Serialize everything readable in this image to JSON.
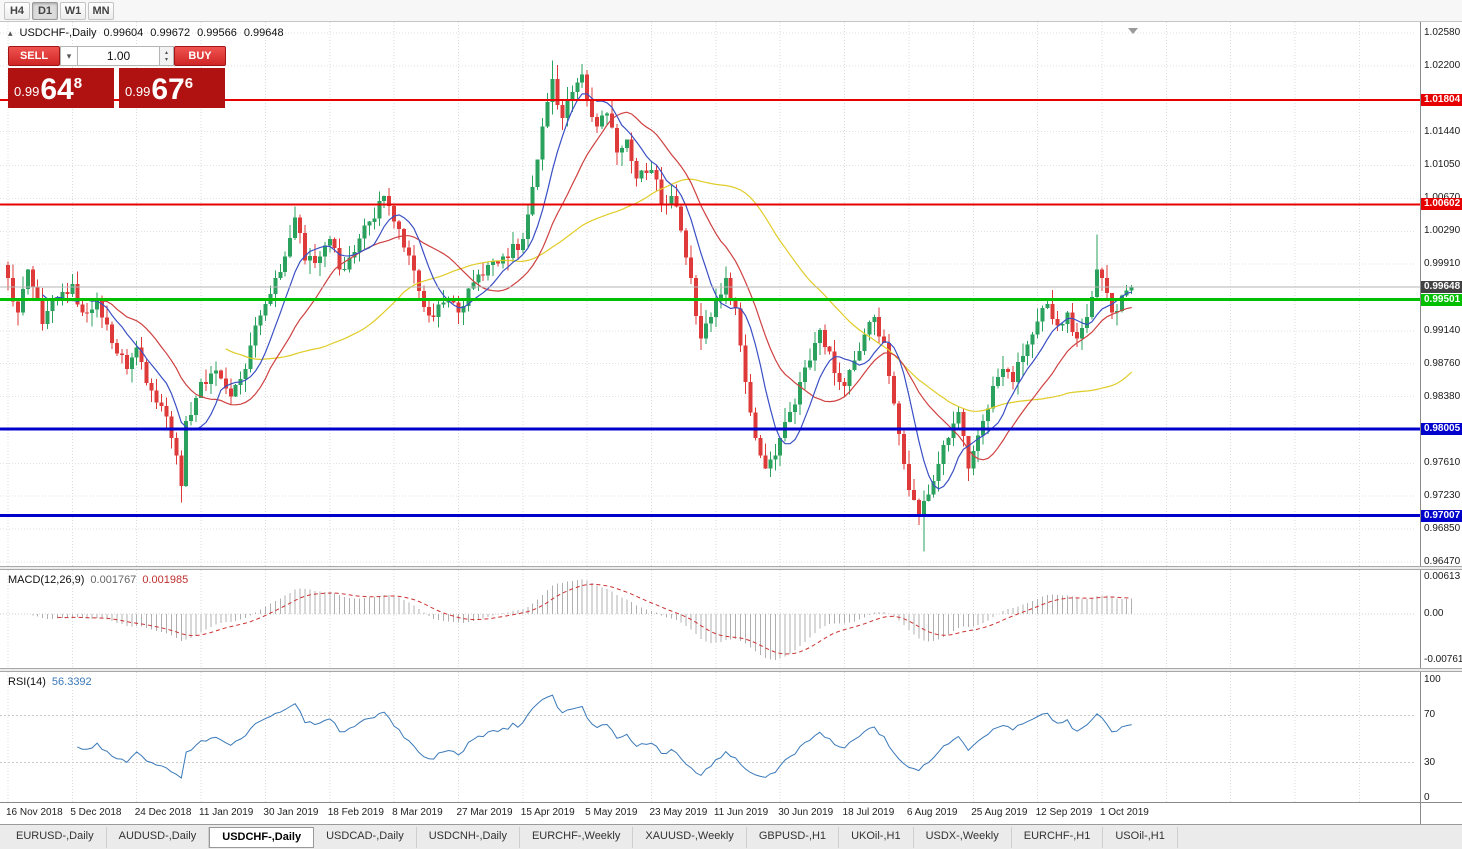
{
  "toolbar": {
    "timeframes": [
      "H4",
      "D1",
      "W1",
      "MN"
    ],
    "active": "D1"
  },
  "icons": {
    "collapse": "▴",
    "dropdown": "▾",
    "spinner_up": "▴",
    "spinner_down": "▾",
    "shift_marker": "▾"
  },
  "chart": {
    "title": "USDCHF-,Daily",
    "ohlc": {
      "open": "0.99604",
      "high": "0.99672",
      "low": "0.99566",
      "close": "0.99648"
    },
    "trade_panel": {
      "sell_label": "SELL",
      "buy_label": "BUY",
      "volume": "1.00",
      "sell_price_small": "0.99",
      "sell_price_big": "64",
      "sell_price_sup": "8",
      "buy_price_small": "0.99",
      "buy_price_big": "67",
      "buy_price_sup": "6"
    },
    "y_axis": [
      "1.02580",
      "1.02200",
      "1.01440",
      "1.01050",
      "1.00670",
      "1.00290",
      "0.99910",
      "0.99140",
      "0.98760",
      "0.98380",
      "0.97610",
      "0.97230",
      "0.96850",
      "0.96470"
    ],
    "levels": [
      {
        "label": "1.01804",
        "value": 1.01804,
        "color": "#e60000",
        "width": 2
      },
      {
        "label": "1.00602",
        "value": 1.00602,
        "color": "#e60000",
        "width": 2
      },
      {
        "label": "0.99501",
        "value": 0.99501,
        "color": "#00bf00",
        "width": 3
      },
      {
        "label": "0.98005",
        "value": 0.98005,
        "color": "#0000cc",
        "width": 3
      },
      {
        "label": "0.97007",
        "value": 0.97007,
        "color": "#0000cc",
        "width": 3
      }
    ],
    "current_price": {
      "label": "0.99648",
      "value": 0.99648,
      "line_color": "#b4b4b4",
      "label_bg": "#424242"
    },
    "colors": {
      "bull": "#2aa25e",
      "bear": "#de3a3a",
      "ma_fast": "#3a4fc4",
      "ma_mid": "#cf4040",
      "ma_slow": "#e0cc28",
      "grid": "#dcdcdc"
    }
  },
  "macd": {
    "label": "MACD(12,26,9)",
    "value_main": "0.001767",
    "value_signal": "0.001985",
    "axis": [
      "0.00613",
      "0.00",
      "-0.00761"
    ],
    "colors": {
      "histogram": "#b0b0b0",
      "signal": "#cc3333"
    }
  },
  "rsi": {
    "label": "RSI(14)",
    "value": "56.3392",
    "axis": [
      100,
      70,
      30,
      0
    ],
    "levels": [
      70,
      30
    ],
    "color": "#3a79b8"
  },
  "x_axis": [
    "16 Nov 2018",
    "5 Dec 2018",
    "24 Dec 2018",
    "11 Jan 2019",
    "30 Jan 2019",
    "18 Feb 2019",
    "8 Mar 2019",
    "27 Mar 2019",
    "15 Apr 2019",
    "5 May 2019",
    "23 May 2019",
    "11 Jun 2019",
    "30 Jun 2019",
    "18 Jul 2019",
    "6 Aug 2019",
    "25 Aug 2019",
    "12 Sep 2019",
    "1 Oct 2019"
  ],
  "tabs": {
    "active": "USDCHF-,Daily",
    "items": [
      "EURUSD-,Daily",
      "AUDUSD-,Daily",
      "USDCHF-,Daily",
      "USDCAD-,Daily",
      "USDCNH-,Daily",
      "EURCHF-,Weekly",
      "XAUUSD-,Weekly",
      "GBPUSD-,H1",
      "UKOil-,H1",
      "USDX-,Weekly",
      "EURCHF-,H1",
      "USOil-,H1"
    ]
  },
  "chart_data": {
    "type": "candlestick",
    "symbol": "USDCHF",
    "timeframe": "Daily",
    "price_range": [
      0.9647,
      1.0258
    ],
    "anchors": [
      [
        0,
        0.9975
      ],
      [
        2,
        0.9935
      ],
      [
        4,
        0.9985
      ],
      [
        7,
        0.9922
      ],
      [
        10,
        0.995
      ],
      [
        13,
        0.9968
      ],
      [
        15,
        0.9935
      ],
      [
        18,
        0.9952
      ],
      [
        21,
        0.99
      ],
      [
        24,
        0.987
      ],
      [
        26,
        0.9895
      ],
      [
        29,
        0.9845
      ],
      [
        32,
        0.9815
      ],
      [
        34,
        0.977
      ],
      [
        35,
        0.9735
      ],
      [
        36,
        0.981
      ],
      [
        39,
        0.9855
      ],
      [
        42,
        0.9868
      ],
      [
        45,
        0.9838
      ],
      [
        48,
        0.987
      ],
      [
        50,
        0.992
      ],
      [
        52,
        0.9945
      ],
      [
        54,
        0.9975
      ],
      [
        56,
        1.0
      ],
      [
        58,
        1.0045
      ],
      [
        60,
        0.9995
      ],
      [
        63,
        1.0
      ],
      [
        65,
        1.002
      ],
      [
        67,
        0.9985
      ],
      [
        70,
        1.0005
      ],
      [
        73,
        1.004
      ],
      [
        76,
        1.007
      ],
      [
        78,
        1.004
      ],
      [
        80,
        1.001
      ],
      [
        83,
        0.996
      ],
      [
        86,
        0.993
      ],
      [
        89,
        0.995
      ],
      [
        91,
        0.9935
      ],
      [
        94,
        0.997
      ],
      [
        97,
        0.999
      ],
      [
        100,
        1.0
      ],
      [
        104,
        1.002
      ],
      [
        106,
        1.008
      ],
      [
        108,
        1.015
      ],
      [
        110,
        1.0205
      ],
      [
        112,
        1.016
      ],
      [
        114,
        1.019
      ],
      [
        116,
        1.021
      ],
      [
        117,
        1.018
      ],
      [
        119,
        1.015
      ],
      [
        121,
        1.0165
      ],
      [
        123,
        1.012
      ],
      [
        125,
        1.0135
      ],
      [
        127,
        1.009
      ],
      [
        130,
        1.01
      ],
      [
        132,
        1.006
      ],
      [
        134,
        1.007
      ],
      [
        136,
        1.003
      ],
      [
        138,
        0.9975
      ],
      [
        140,
        0.9905
      ],
      [
        142,
        0.993
      ],
      [
        143,
        0.995
      ],
      [
        145,
        0.9975
      ],
      [
        147,
        0.994
      ],
      [
        149,
        0.9855
      ],
      [
        151,
        0.979
      ],
      [
        153,
        0.9755
      ],
      [
        155,
        0.977
      ],
      [
        156,
        0.979
      ],
      [
        158,
        0.982
      ],
      [
        160,
        0.9855
      ],
      [
        162,
        0.988
      ],
      [
        164,
        0.9915
      ],
      [
        166,
        0.989
      ],
      [
        168,
        0.9855
      ],
      [
        169,
        0.985
      ],
      [
        171,
        0.988
      ],
      [
        173,
        0.991
      ],
      [
        175,
        0.993
      ],
      [
        177,
        0.99
      ],
      [
        179,
        0.983
      ],
      [
        181,
        0.976
      ],
      [
        182,
        0.973
      ],
      [
        184,
        0.97
      ],
      [
        186,
        0.9725
      ],
      [
        188,
        0.976
      ],
      [
        190,
        0.979
      ],
      [
        192,
        0.982
      ],
      [
        194,
        0.9755
      ],
      [
        195,
        0.9775
      ],
      [
        197,
        0.981
      ],
      [
        199,
        0.985
      ],
      [
        201,
        0.987
      ],
      [
        203,
        0.9855
      ],
      [
        205,
        0.9885
      ],
      [
        207,
        0.991
      ],
      [
        208,
        0.9925
      ],
      [
        210,
        0.9945
      ],
      [
        212,
        0.992
      ],
      [
        214,
        0.9935
      ],
      [
        216,
        0.9905
      ],
      [
        218,
        0.993
      ],
      [
        220,
        0.9985
      ],
      [
        221,
        0.9975
      ],
      [
        223,
        0.9935
      ],
      [
        225,
        0.9955
      ],
      [
        226,
        0.99604
      ],
      [
        227,
        0.99648
      ]
    ],
    "extremes": [
      {
        "day": 35,
        "low": 0.9716
      },
      {
        "day": 110,
        "high": 1.0226
      },
      {
        "day": 116,
        "high": 1.0222
      },
      {
        "day": 185,
        "low": 0.9659
      },
      {
        "day": 220,
        "high": 1.0025
      },
      {
        "day": 227,
        "high": 0.99672,
        "low": 0.99566
      }
    ]
  }
}
